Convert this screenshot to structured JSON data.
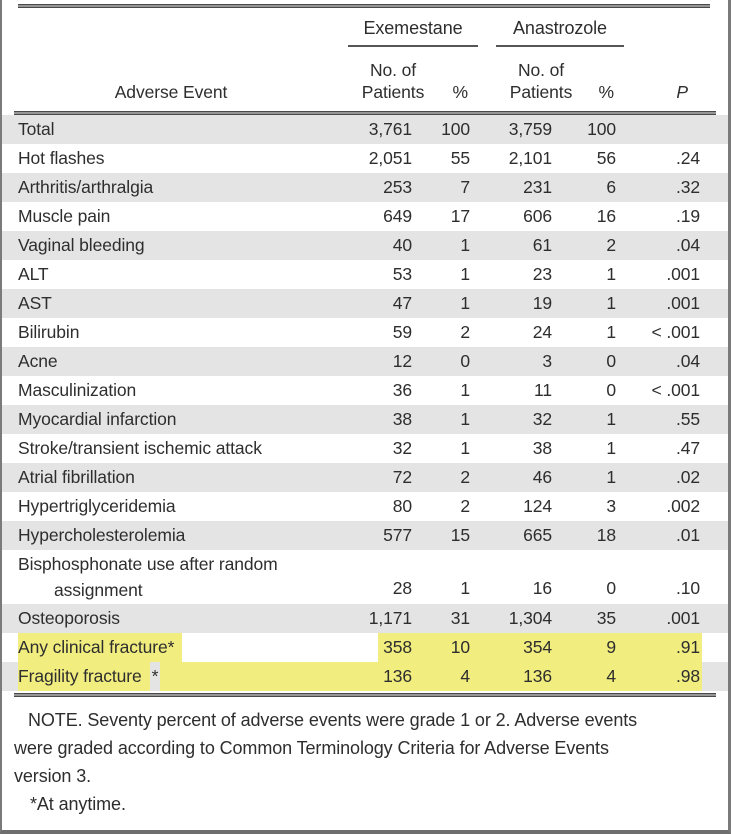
{
  "colors": {
    "highlight_yellow": "#f1ed7f",
    "stripe_gray": "#e4e4e4",
    "rule_color": "#4a4a4a",
    "border_color": "#7a7a7a",
    "text_color": "#2e2e2e"
  },
  "table": {
    "groups": [
      "Exemestane",
      "Anastrozole"
    ],
    "headers": {
      "event": "Adverse Event",
      "patients_line1": "No. of",
      "patients_line2": "Patients",
      "percent": "%",
      "p": "P"
    },
    "rows": [
      {
        "event": "Total",
        "ex_n": "3,761",
        "ex_pct": "100",
        "an_n": "3,759",
        "an_pct": "100",
        "p": ""
      },
      {
        "event": "Hot flashes",
        "ex_n": "2,051",
        "ex_pct": "55",
        "an_n": "2,101",
        "an_pct": "56",
        "p": ".24"
      },
      {
        "event": "Arthritis/arthralgia",
        "ex_n": "253",
        "ex_pct": "7",
        "an_n": "231",
        "an_pct": "6",
        "p": ".32"
      },
      {
        "event": "Muscle pain",
        "ex_n": "649",
        "ex_pct": "17",
        "an_n": "606",
        "an_pct": "16",
        "p": ".19"
      },
      {
        "event": "Vaginal bleeding",
        "ex_n": "40",
        "ex_pct": "1",
        "an_n": "61",
        "an_pct": "2",
        "p": ".04"
      },
      {
        "event": "ALT",
        "ex_n": "53",
        "ex_pct": "1",
        "an_n": "23",
        "an_pct": "1",
        "p": ".001"
      },
      {
        "event": "AST",
        "ex_n": "47",
        "ex_pct": "1",
        "an_n": "19",
        "an_pct": "1",
        "p": ".001"
      },
      {
        "event": "Bilirubin",
        "ex_n": "59",
        "ex_pct": "2",
        "an_n": "24",
        "an_pct": "1",
        "p": "< .001"
      },
      {
        "event": "Acne",
        "ex_n": "12",
        "ex_pct": "0",
        "an_n": "3",
        "an_pct": "0",
        "p": ".04"
      },
      {
        "event": "Masculinization",
        "ex_n": "36",
        "ex_pct": "1",
        "an_n": "11",
        "an_pct": "0",
        "p": "< .001"
      },
      {
        "event": "Myocardial infarction",
        "ex_n": "38",
        "ex_pct": "1",
        "an_n": "32",
        "an_pct": "1",
        "p": ".55"
      },
      {
        "event": "Stroke/transient ischemic attack",
        "ex_n": "32",
        "ex_pct": "1",
        "an_n": "38",
        "an_pct": "1",
        "p": ".47"
      },
      {
        "event": "Atrial fibrillation",
        "ex_n": "72",
        "ex_pct": "2",
        "an_n": "46",
        "an_pct": "1",
        "p": ".02"
      },
      {
        "event": "Hypertriglyceridemia",
        "ex_n": "80",
        "ex_pct": "2",
        "an_n": "124",
        "an_pct": "3",
        "p": ".002"
      },
      {
        "event": "Hypercholesterolemia",
        "ex_n": "577",
        "ex_pct": "15",
        "an_n": "665",
        "an_pct": "18",
        "p": ".01"
      },
      {
        "event": "Bisphosphonate use after random assignment",
        "event_lines": [
          "Bisphosphonate use after random",
          "assignment"
        ],
        "ex_n": "28",
        "ex_pct": "1",
        "an_n": "16",
        "an_pct": "0",
        "p": ".10"
      },
      {
        "event": "Osteoporosis",
        "ex_n": "1,171",
        "ex_pct": "31",
        "an_n": "1,304",
        "an_pct": "35",
        "p": ".001"
      },
      {
        "event": "Any clinical fracture*",
        "highlight": "label-and-values",
        "ex_n": "358",
        "ex_pct": "10",
        "an_n": "354",
        "an_pct": "9",
        "p": ".91"
      },
      {
        "event": "Fragility fracture*",
        "highlight": "row",
        "ex_n": "136",
        "ex_pct": "4",
        "an_n": "136",
        "an_pct": "4",
        "p": ".98"
      }
    ],
    "note": {
      "lines": [
        "NOTE. Seventy percent of adverse events were grade 1 or 2. Adverse events",
        "were graded according to Common Terminology Criteria for Adverse Events",
        "version 3."
      ],
      "footnote": "*At anytime."
    }
  }
}
